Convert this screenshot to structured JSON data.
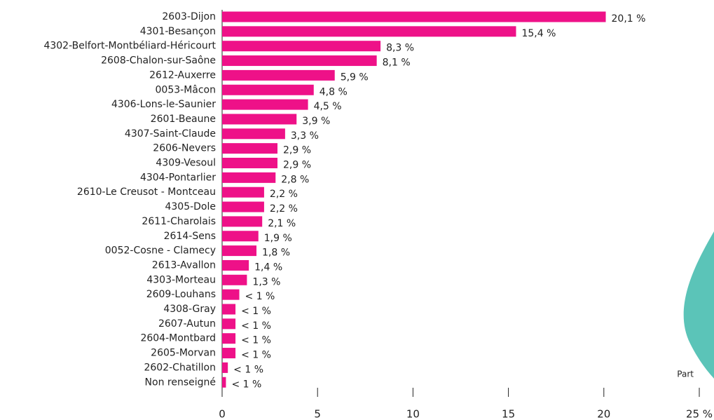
{
  "chart_data": {
    "type": "barh",
    "categories": [
      "2603-Dijon",
      "4301-Besançon",
      "4302-Belfort-Montbéliard-Héricourt",
      "2608-Chalon-sur-Saône",
      "2612-Auxerre",
      "0053-Mâcon",
      "4306-Lons-le-Saunier",
      "2601-Beaune",
      "4307-Saint-Claude",
      "2606-Nevers",
      "4309-Vesoul",
      "4304-Pontarlier",
      "2610-Le Creusot - Montceau",
      "4305-Dole",
      "2611-Charolais",
      "2614-Sens",
      "0052-Cosne - Clamecy",
      "2613-Avallon",
      "4303-Morteau",
      "2609-Louhans",
      "4308-Gray",
      "2607-Autun",
      "2604-Montbard",
      "2605-Morvan",
      "2602-Chatillon",
      "Non renseigné"
    ],
    "values": [
      20.1,
      15.4,
      8.3,
      8.1,
      5.9,
      4.8,
      4.5,
      3.9,
      3.3,
      2.9,
      2.9,
      2.8,
      2.2,
      2.2,
      2.1,
      1.9,
      1.8,
      1.4,
      1.3,
      0.9,
      0.7,
      0.7,
      0.7,
      0.7,
      0.3,
      0.2
    ],
    "value_labels": [
      "20,1 %",
      "15,4 %",
      "8,3 %",
      "8,1 %",
      "5,9 %",
      "4,8 %",
      "4,5 %",
      "3,9 %",
      "3,3 %",
      "2,9 %",
      "2,9 %",
      "2,8 %",
      "2,2 %",
      "2,2 %",
      "2,1 %",
      "1,9 %",
      "1,8 %",
      "1,4 %",
      "1,3 %",
      "< 1 %",
      "< 1 %",
      "< 1 %",
      "< 1 %",
      "< 1 %",
      "< 1 %",
      "< 1 %"
    ],
    "color": "#ee1188",
    "xlim": [
      0,
      25
    ],
    "xticks": [
      0,
      5,
      10,
      15,
      20,
      {
        "value": 25,
        "label": "25 %"
      }
    ],
    "x_label": "Part"
  }
}
